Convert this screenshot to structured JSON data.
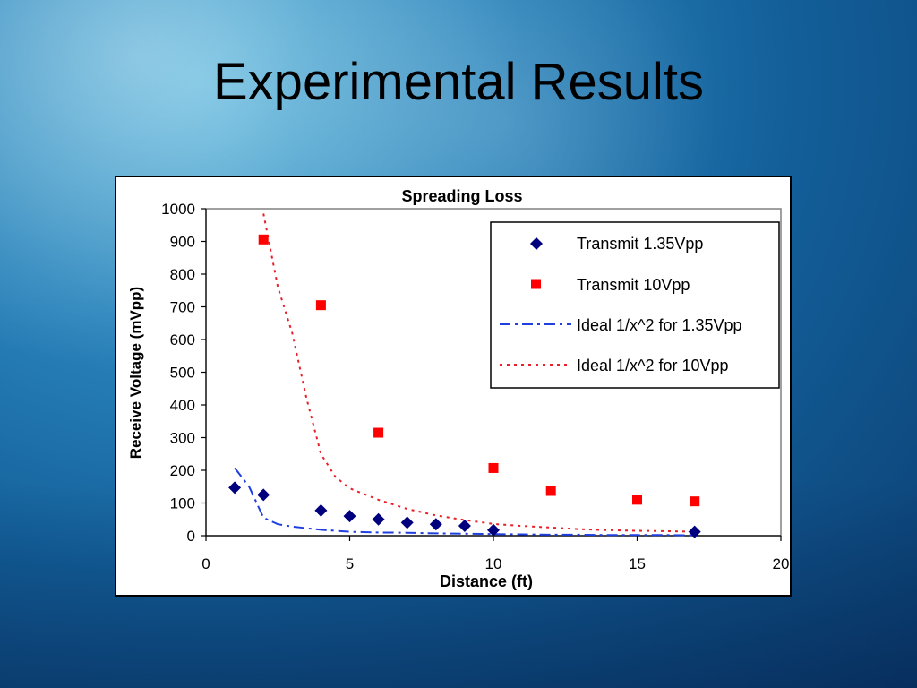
{
  "slide": {
    "title": "Experimental Results"
  },
  "colors": {
    "series1": "#00007f",
    "series2": "#ff0000",
    "ideal1": "#1f3fe0",
    "ideal2": "#e8202a"
  },
  "chart_data": {
    "type": "scatter",
    "title": "Spreading Loss",
    "xlabel": "Distance (ft)",
    "ylabel": "Receive Voltage (mVpp)",
    "xlim": [
      0,
      20
    ],
    "ylim": [
      0,
      1000
    ],
    "xticks": [
      "0",
      "5",
      "10",
      "15",
      "20"
    ],
    "yticks": [
      "0",
      "100",
      "200",
      "300",
      "400",
      "500",
      "600",
      "700",
      "800",
      "900",
      "1000"
    ],
    "legend_position": "top-right",
    "series": [
      {
        "name": "Transmit 1.35Vpp",
        "marker": "diamond",
        "color": "#00007f",
        "x": [
          1,
          2,
          4,
          5,
          6,
          7,
          8,
          9,
          10,
          17
        ],
        "y": [
          147,
          125,
          77,
          60,
          50,
          40,
          35,
          30,
          17,
          12
        ]
      },
      {
        "name": "Transmit 10Vpp",
        "marker": "square",
        "color": "#ff0000",
        "x": [
          2,
          4,
          6,
          10,
          12,
          15,
          17
        ],
        "y": [
          906,
          705,
          315,
          207,
          137,
          110,
          105
        ]
      },
      {
        "name": "Ideal 1/x^2 for 1.35Vpp",
        "line": "dash-dot",
        "color": "#1f3fe0",
        "x": [
          1,
          1.5,
          2,
          2.5,
          3,
          4,
          5,
          6,
          7,
          8,
          9,
          10,
          11,
          12,
          13,
          14,
          15,
          16,
          17
        ],
        "y": [
          207,
          150,
          55,
          35,
          28,
          18,
          12,
          10,
          9,
          7,
          6,
          5,
          4,
          3,
          3,
          2,
          2,
          2,
          1
        ]
      },
      {
        "name": "Ideal 1/x^2 for 10Vpp",
        "line": "dotted",
        "color": "#e8202a",
        "x": [
          2,
          2.5,
          3,
          3.5,
          4,
          4.5,
          5,
          6,
          7,
          8,
          9,
          10,
          11,
          12,
          13,
          14,
          15,
          16,
          17
        ],
        "y": [
          985,
          760,
          620,
          420,
          250,
          180,
          145,
          110,
          82,
          62,
          48,
          36,
          30,
          25,
          20,
          17,
          15,
          14,
          12
        ]
      }
    ]
  }
}
